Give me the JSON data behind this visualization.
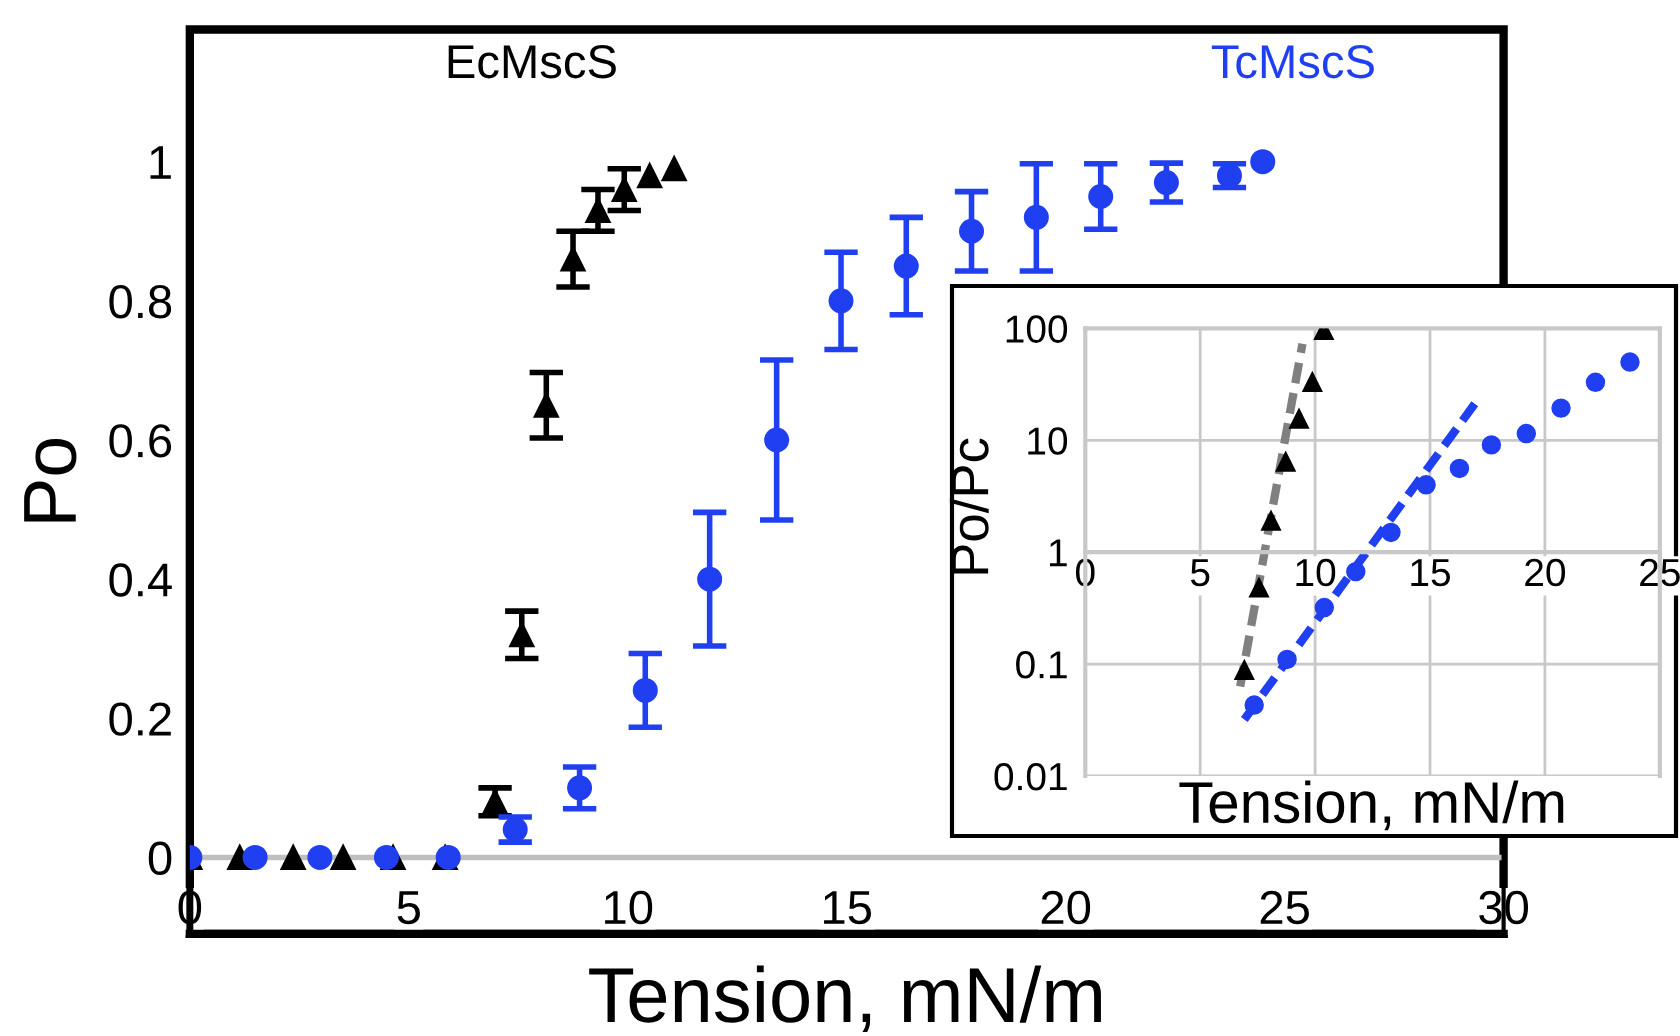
{
  "chart_data": [
    {
      "type": "scatter",
      "xlabel": "Tension, mN/m",
      "ylabel": "Po",
      "xlim": [
        0,
        30
      ],
      "xticks": [
        0,
        5,
        10,
        15,
        20,
        25,
        30
      ],
      "ylim": [
        -0.11,
        1.19
      ],
      "yticks": [
        0,
        0.2,
        0.4,
        0.6,
        0.8,
        1
      ],
      "grid": false,
      "legend": false,
      "ref_lines": [
        {
          "axis": "y",
          "value": 0,
          "color": "#bfbfbf"
        }
      ],
      "series": [
        {
          "name": "EcMscS",
          "color": "#000000",
          "marker": "triangle",
          "x": [
            0,
            1.14,
            2.36,
            3.5,
            4.64,
            5.83,
            6.97,
            7.58,
            8.14,
            8.75,
            9.32,
            9.92,
            10.5,
            11.06
          ],
          "values": [
            0,
            0,
            0,
            0,
            0,
            0,
            0.08,
            0.32,
            0.65,
            0.86,
            0.93,
            0.96,
            0.98,
            0.99
          ],
          "errors": [
            null,
            null,
            null,
            null,
            null,
            null,
            0.02,
            0.034,
            0.047,
            0.04,
            0.03,
            0.03,
            null,
            null
          ]
        },
        {
          "name": "TcMscS",
          "color": "#1f3ff0",
          "marker": "circle",
          "x": [
            0,
            1.49,
            2.97,
            4.49,
            5.9,
            7.43,
            8.9,
            10.4,
            11.87,
            13.4,
            14.87,
            16.36,
            17.85,
            19.33,
            20.8,
            22.3,
            23.74,
            24.5
          ],
          "values": [
            0,
            0,
            0,
            0,
            0,
            0.04,
            0.1,
            0.24,
            0.4,
            0.6,
            0.8,
            0.85,
            0.9,
            0.92,
            0.95,
            0.97,
            0.98,
            1.0
          ],
          "errors": [
            null,
            null,
            null,
            null,
            null,
            0.018,
            0.03,
            0.053,
            0.096,
            0.115,
            0.07,
            0.07,
            0.057,
            0.077,
            0.047,
            0.028,
            0.017,
            null
          ]
        }
      ]
    },
    {
      "type": "scatter",
      "xlabel": "Tension, mN/m",
      "ylabel": "Po/Pc",
      "log": "y",
      "xlim": [
        0,
        25
      ],
      "xticks": [
        0,
        5,
        10,
        15,
        20,
        25
      ],
      "ylim": [
        0.01,
        100
      ],
      "yticks": [
        0.01,
        0.1,
        1,
        10,
        100
      ],
      "grid": true,
      "legend": false,
      "series": [
        {
          "color": "#000000",
          "marker": "triangle",
          "x": [
            6.92,
            7.56,
            8.08,
            8.72,
            9.3,
            9.88,
            10.38
          ],
          "values": [
            0.088,
            0.48,
            1.9,
            6.4,
            15.5,
            33,
            96
          ]
        },
        {
          "color": "#1f3ff0",
          "marker": "circle",
          "x": [
            7.35,
            8.78,
            10.4,
            11.77,
            13.3,
            14.83,
            16.28,
            17.67,
            19.19,
            20.7,
            22.2,
            23.7
          ],
          "values": [
            0.043,
            0.11,
            0.32,
            0.67,
            1.5,
            4.0,
            5.6,
            9.1,
            11.5,
            19.4,
            33,
            50
          ]
        },
        {
          "type": "line",
          "color": "#808080",
          "line_style": "dashed",
          "marker": "none",
          "x": [
            6.74,
            9.45
          ],
          "values": [
            0.063,
            73
          ]
        },
        {
          "type": "line",
          "color": "#1f3ff0",
          "line_style": "dashed",
          "marker": "none",
          "x": [
            6.92,
            17.1
          ],
          "values": [
            0.032,
            23.4
          ]
        }
      ]
    }
  ]
}
